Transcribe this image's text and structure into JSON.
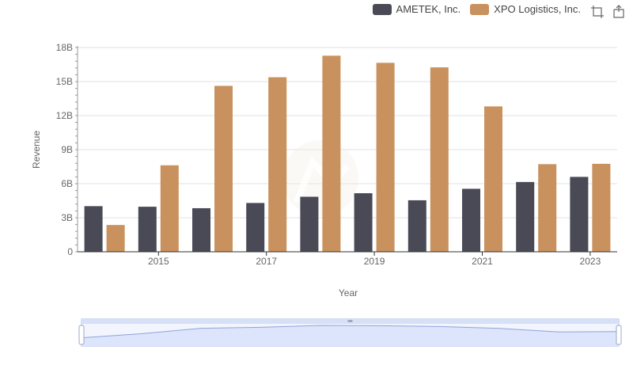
{
  "colors": {
    "ametek": "#4a4a56",
    "xpo": "#c8915e",
    "grid": "#e0e0e0",
    "axis": "#333333",
    "slider_fill": "#dce5fb",
    "slider_border": "#a9b9e8",
    "slider_line": "#8ea4dc"
  },
  "toolbox": {
    "icons": [
      "zoom-icon",
      "zoom-reset-icon"
    ]
  },
  "chart_data": {
    "type": "bar",
    "title": "",
    "xlabel": "Year",
    "ylabel": "Revenue",
    "categories": [
      "2014",
      "2015",
      "2016",
      "2017",
      "2018",
      "2019",
      "2020",
      "2021",
      "2022",
      "2023"
    ],
    "x_tick_labels": [
      "2015",
      "2017",
      "2019",
      "2021",
      "2023"
    ],
    "y_tick_labels": [
      "0",
      "3B",
      "6B",
      "9B",
      "12B",
      "15B",
      "18B"
    ],
    "ylim": [
      0,
      18000000000
    ],
    "grid": true,
    "legend_position": "top-right",
    "series": [
      {
        "name": "AMETEK, Inc.",
        "values": [
          4020000000,
          3970000000,
          3840000000,
          4300000000,
          4850000000,
          5160000000,
          4540000000,
          5550000000,
          6150000000,
          6600000000
        ]
      },
      {
        "name": "XPO Logistics, Inc.",
        "values": [
          2360000000,
          7620000000,
          14620000000,
          15380000000,
          17280000000,
          16650000000,
          16250000000,
          12810000000,
          7720000000,
          7750000000
        ]
      }
    ],
    "slider": {
      "start": 0,
      "end": 100
    }
  }
}
